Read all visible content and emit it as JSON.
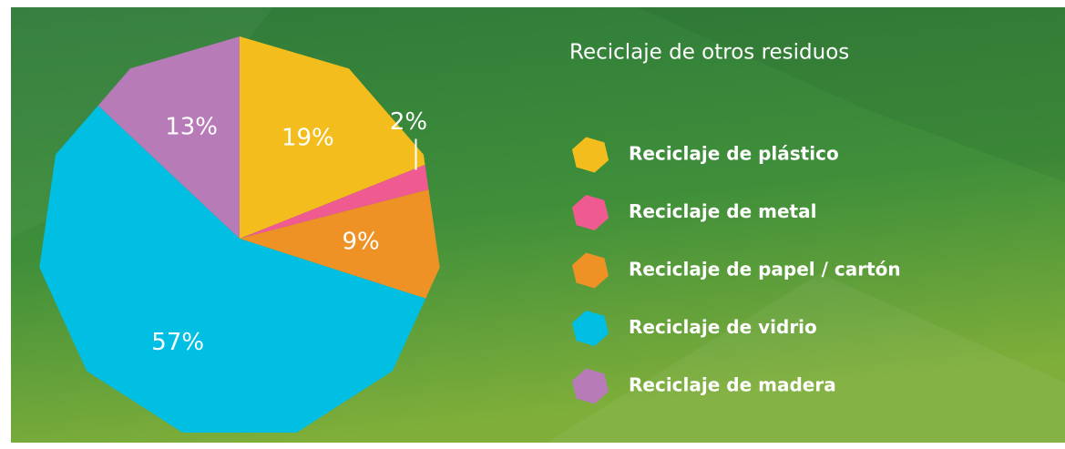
{
  "chart_data": {
    "type": "pie",
    "title": "Reciclaje de otros residuos",
    "categories": [
      "Reciclaje de plástico",
      "Reciclaje de metal",
      "Reciclaje de papel / cartón",
      "Reciclaje de vidrio",
      "Reciclaje de madera"
    ],
    "values": [
      19,
      2,
      9,
      57,
      13
    ],
    "value_labels": [
      "19%",
      "2%",
      "9%",
      "57%",
      "13%"
    ],
    "colors": [
      "#f2bd1d",
      "#ef5b91",
      "#ee9226",
      "#00bfe3",
      "#b77bb7"
    ]
  }
}
